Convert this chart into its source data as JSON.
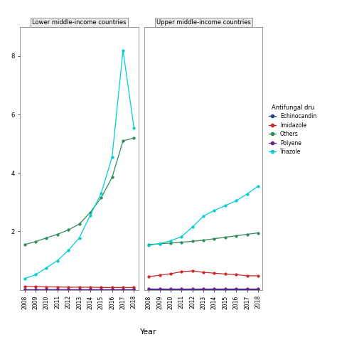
{
  "years": [
    2008,
    2009,
    2010,
    2011,
    2012,
    2013,
    2014,
    2015,
    2016,
    2017,
    2018
  ],
  "panel1_title": "Lower middle-income countries",
  "panel2_title": "Upper middle-income countries",
  "xlabel": "Year",
  "legend_title": "Antifungal dru",
  "legend_entries": [
    "Echinocandin",
    "Imidazole",
    "Others",
    "Polyene",
    "Triazole"
  ],
  "colors": {
    "Echinocandin": "#27408B",
    "Imidazole": "#CD2626",
    "Others": "#2E8B57",
    "Polyene": "#68228B",
    "Triazole": "#00CED1"
  },
  "panel1": {
    "Echinocandin": [
      0.01,
      0.01,
      0.01,
      0.01,
      0.01,
      0.01,
      0.01,
      0.01,
      0.01,
      0.01,
      0.01
    ],
    "Imidazole": [
      0.12,
      0.11,
      0.1,
      0.1,
      0.09,
      0.09,
      0.09,
      0.08,
      0.08,
      0.08,
      0.08
    ],
    "Others": [
      1.55,
      1.65,
      1.78,
      1.9,
      2.05,
      2.25,
      2.65,
      3.15,
      3.85,
      5.1,
      5.2
    ],
    "Polyene": [
      0.02,
      0.02,
      0.02,
      0.02,
      0.02,
      0.02,
      0.02,
      0.02,
      0.02,
      0.02,
      0.02
    ],
    "Triazole": [
      0.38,
      0.52,
      0.75,
      1.0,
      1.35,
      1.78,
      2.55,
      3.3,
      4.55,
      8.2,
      5.55
    ]
  },
  "panel2": {
    "Echinocandin": [
      0.02,
      0.02,
      0.02,
      0.02,
      0.02,
      0.02,
      0.02,
      0.02,
      0.02,
      0.02,
      0.02
    ],
    "Imidazole": [
      0.45,
      0.5,
      0.55,
      0.62,
      0.65,
      0.6,
      0.57,
      0.54,
      0.52,
      0.48,
      0.48
    ],
    "Others": [
      1.55,
      1.58,
      1.6,
      1.63,
      1.66,
      1.7,
      1.75,
      1.8,
      1.85,
      1.9,
      1.95
    ],
    "Polyene": [
      0.03,
      0.03,
      0.03,
      0.03,
      0.03,
      0.03,
      0.03,
      0.03,
      0.03,
      0.03,
      0.03
    ],
    "Triazole": [
      1.53,
      1.58,
      1.68,
      1.82,
      2.15,
      2.52,
      2.72,
      2.88,
      3.05,
      3.28,
      3.55
    ]
  },
  "ylim": [
    0,
    9
  ],
  "ytick_values": [
    2,
    4,
    6,
    8
  ],
  "background_color": "#ffffff"
}
